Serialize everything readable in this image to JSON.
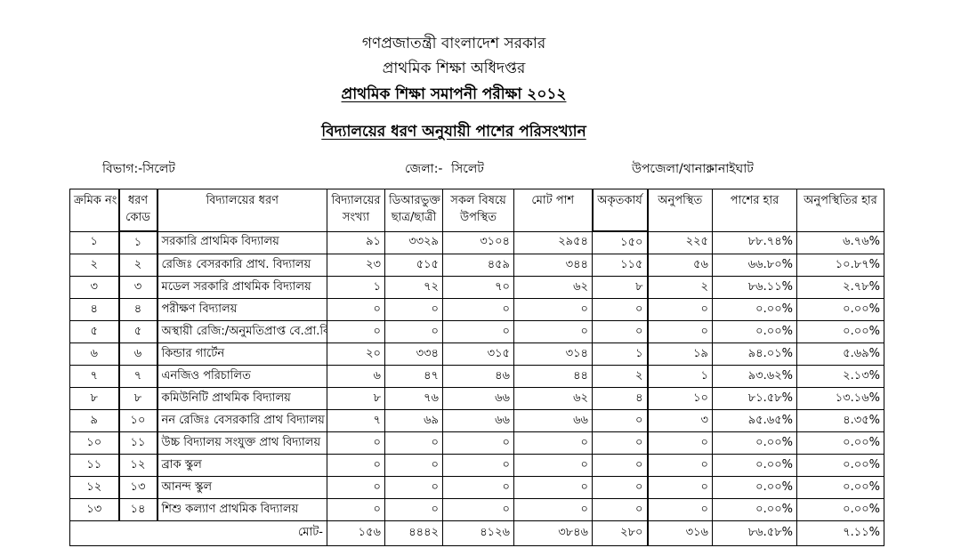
{
  "titles": {
    "line1": "গণপ্রজাতন্ত্রী বাংলাদেশ সরকার",
    "line2": "প্রাথমিক শিক্ষা অধিদপ্তর",
    "line3": "প্রাথমিক শিক্ষা সমাপনী পরীক্ষা ২০১২",
    "subtitle": "বিদ্যালয়ের ধরণ অনুযায়ী পাশের পরিসংখ্যান"
  },
  "meta": {
    "division_label": "বিভাগ:-",
    "division_value": "সিলেট",
    "district_label": "জেলা:-",
    "district_value": "সিলেট",
    "upazila_label": "উপজেলা/থানা:-",
    "upazila_value": "কানাইঘাট"
  },
  "table": {
    "columns": [
      {
        "id": "serial",
        "lines": [
          "ক্রমিক নং"
        ]
      },
      {
        "id": "code",
        "lines": [
          "ধরণ",
          "কোড"
        ]
      },
      {
        "id": "type",
        "lines": [
          "বিদ্যালয়ের ধরণ"
        ]
      },
      {
        "id": "schools",
        "lines": [
          "বিদ্যালয়ের",
          "সংখ্যা"
        ]
      },
      {
        "id": "dr-students",
        "lines": [
          "ডিআরভুক্ত",
          "ছাত্র/ছাত্রী"
        ]
      },
      {
        "id": "present-all",
        "lines": [
          "সকল বিষয়ে",
          "উপস্থিত"
        ]
      },
      {
        "id": "total-pass",
        "lines": [
          "মোট পাশ"
        ]
      },
      {
        "id": "failed",
        "lines": [
          "অকৃতকার্য"
        ]
      },
      {
        "id": "absent",
        "lines": [
          "অনুপস্থিত"
        ]
      },
      {
        "id": "pass-rate",
        "lines": [
          "পাশের হার"
        ]
      },
      {
        "id": "absent-rate",
        "lines": [
          "অনুপস্থিতির হার"
        ]
      }
    ],
    "rows": [
      [
        "১",
        "১",
        "সরকারি প্রাথমিক বিদ্যালয়",
        "৯১",
        "৩৩২৯",
        "৩১০৪",
        "২৯৫৪",
        "১৫০",
        "২২৫",
        "৮৮.৭৪%",
        "৬.৭৬%"
      ],
      [
        "২",
        "২",
        "রেজিঃ বেসরকারি প্রাথ. বিদ্যালয়",
        "২৩",
        "৫১৫",
        "৪৫৯",
        "৩৪৪",
        "১১৫",
        "৫৬",
        "৬৬.৮০%",
        "১০.৮৭%"
      ],
      [
        "৩",
        "৩",
        "মডেল সরকারি প্রাথমিক বিদ্যালয়",
        "১",
        "৭২",
        "৭০",
        "৬২",
        "৮",
        "২",
        "৮৬.১১%",
        "২.৭৮%"
      ],
      [
        "৪",
        "৪",
        "পরীক্ষণ বিদ্যালয়",
        "০",
        "০",
        "০",
        "০",
        "০",
        "০",
        "০.০০%",
        "০.০০%"
      ],
      [
        "৫",
        "৫",
        "অস্থায়ী রেজি:/অনুমতিপ্রাপ্ত বে.প্রা.বি",
        "০",
        "০",
        "০",
        "০",
        "০",
        "০",
        "০.০০%",
        "০.০০%"
      ],
      [
        "৬",
        "৬",
        "কিন্ডার গার্টেন",
        "২০",
        "৩৩৪",
        "৩১৫",
        "৩১৪",
        "১",
        "১৯",
        "৯৪.০১%",
        "৫.৬৯%"
      ],
      [
        "৭",
        "৭",
        "এনজিও পরিচালিত",
        "৬",
        "৪৭",
        "৪৬",
        "৪৪",
        "২",
        "১",
        "৯৩.৬২%",
        "২.১৩%"
      ],
      [
        "৮",
        "৮",
        "কমিউনিটি প্রাথমিক বিদ্যালয়",
        "৮",
        "৭৬",
        "৬৬",
        "৬২",
        "৪",
        "১০",
        "৮১.৫৮%",
        "১৩.১৬%"
      ],
      [
        "৯",
        "১০",
        "নন রেজিঃ বেসরকারি প্রাথ বিদ্যালয়",
        "৭",
        "৬৯",
        "৬৬",
        "৬৬",
        "০",
        "৩",
        "৯৫.৬৫%",
        "৪.৩৫%"
      ],
      [
        "১০",
        "১১",
        "উচ্চ বিদ্যালয় সংযুক্ত প্রাথ বিদ্যালয়",
        "০",
        "০",
        "০",
        "০",
        "০",
        "০",
        "০.০০%",
        "০.০০%"
      ],
      [
        "১১",
        "১২",
        "ব্রাক স্কুল",
        "০",
        "০",
        "০",
        "০",
        "০",
        "০",
        "০.০০%",
        "০.০০%"
      ],
      [
        "১২",
        "১৩",
        "আনন্দ স্কুল",
        "০",
        "০",
        "০",
        "০",
        "০",
        "০",
        "০.০০%",
        "০.০০%"
      ],
      [
        "১৩",
        "১৪",
        "শিশু কল্যাণ প্রাথমিক বিদ্যালয়",
        "০",
        "০",
        "০",
        "০",
        "০",
        "০",
        "০.০০%",
        "০.০০%"
      ]
    ],
    "total": {
      "label": "মোট-",
      "values": [
        "১৫৬",
        "৪৪৪২",
        "৪১২৬",
        "৩৮৪৬",
        "২৮০",
        "৩১৬",
        "৮৬.৫৮%",
        "৭.১১%"
      ]
    }
  }
}
